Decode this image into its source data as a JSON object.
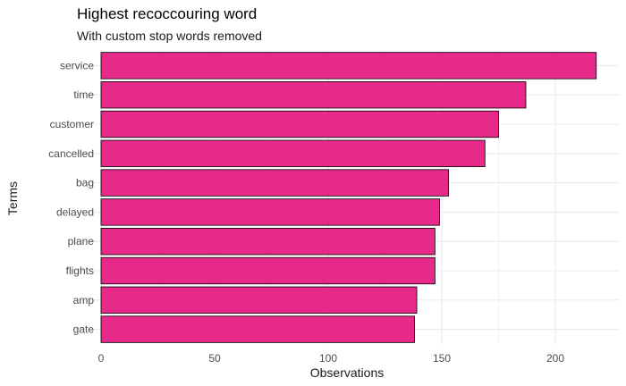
{
  "chart_data": {
    "type": "bar",
    "orientation": "horizontal",
    "title": "Highest recoccouring word",
    "subtitle": "With custom stop words removed",
    "xlabel": "Observations",
    "ylabel": "Terms",
    "categories": [
      "service",
      "time",
      "customer",
      "cancelled",
      "bag",
      "delayed",
      "plane",
      "flights",
      "amp",
      "gate"
    ],
    "values": [
      218,
      187,
      175,
      169,
      153,
      149,
      147,
      147,
      139,
      138
    ],
    "xlim": [
      0,
      225
    ],
    "xticks": [
      0,
      50,
      100,
      150,
      200
    ],
    "grid": true,
    "bar_color": "#e7298a",
    "bar_outline": "#000000"
  }
}
